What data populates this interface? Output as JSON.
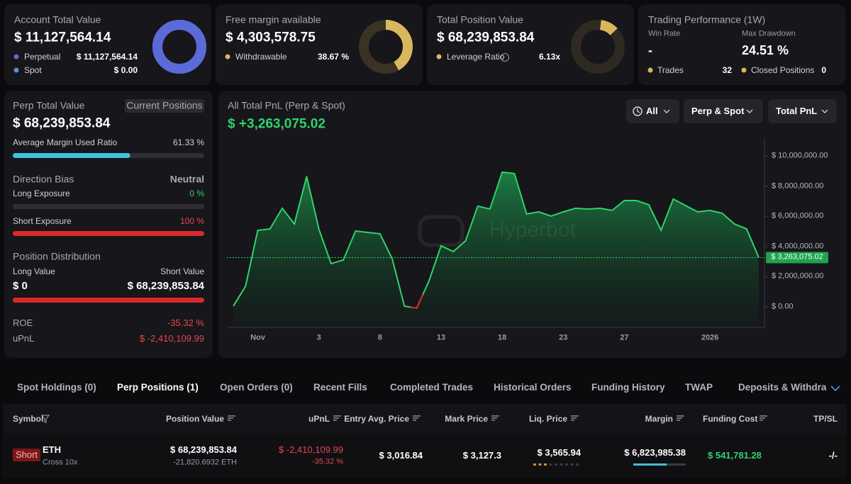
{
  "cards": [
    {
      "title": "Account Total Value",
      "value": "$ 11,127,564.14",
      "items": [
        {
          "label": "Perpetual",
          "value": "$ 11,127,564.14"
        },
        {
          "label": "Spot",
          "value": "$ 0.00"
        }
      ]
    },
    {
      "title": "Free margin available",
      "value": "$ 4,303,578.75",
      "items": [
        {
          "label": "Withdrawable",
          "value": "38.67 %"
        }
      ]
    },
    {
      "title": "Total Position Value",
      "value": "$ 68,239,853.84",
      "items": [
        {
          "label": "Leverage Ratio",
          "value": "6.13x"
        }
      ]
    },
    {
      "title": "Trading Performance (1W)",
      "stats": [
        {
          "label": "Win Rate",
          "value": "-"
        },
        {
          "label": "Max Drawdown",
          "value": "24.51 %"
        }
      ],
      "items": [
        {
          "label": "Trades",
          "value": "32"
        },
        {
          "label": "Closed Positions",
          "value": "0"
        }
      ]
    }
  ],
  "perp": {
    "title": "Perp Total Value",
    "button": "Current Positions",
    "value": "$ 68,239,853.84",
    "margin_label": "Average Margin Used Ratio",
    "margin_value": "61.33 %",
    "bias_label": "Direction Bias",
    "bias_value": "Neutral",
    "long_label": "Long Exposure",
    "long_value": "0 %",
    "short_label": "Short Exposure",
    "short_value": "100 %",
    "dist_label": "Position Distribution",
    "long_value_label": "Long Value",
    "short_value_label": "Short Value",
    "long_amount": "$ 0",
    "short_amount": "$ 68,239,853.84",
    "roe_label": "ROE",
    "roe_value": "-35.32 %",
    "upnl_label": "uPnL",
    "upnl_value": "$ -2,410,109.99"
  },
  "pnl_panel": {
    "value": "$ +3,263,075.02",
    "filters": [
      "All",
      "Perp & Spot",
      "Total PnL"
    ],
    "watermark": "Hyperbot"
  },
  "chart_data": {
    "type": "area",
    "title": "All Total PnL (Perp & Spot)",
    "categories": [
      null,
      null,
      "Nov",
      null,
      null,
      null,
      null,
      "3",
      null,
      null,
      null,
      null,
      "8",
      null,
      null,
      null,
      null,
      "13",
      null,
      null,
      null,
      null,
      "18",
      null,
      null,
      null,
      null,
      "23",
      null,
      null,
      null,
      null,
      "27",
      null,
      null,
      null,
      null,
      null,
      null,
      "2026",
      null,
      null,
      null,
      null
    ],
    "values": [
      50000,
      1360000,
      5070000,
      5160000,
      6530000,
      5490000,
      8640000,
      5160000,
      2860000,
      3100000,
      5020000,
      4930000,
      4840000,
      3190000,
      50000,
      -90000,
      1690000,
      4040000,
      3660000,
      4370000,
      6670000,
      6480000,
      8920000,
      8830000,
      6150000,
      6290000,
      6010000,
      6290000,
      6530000,
      6480000,
      6530000,
      6390000,
      7040000,
      7040000,
      6760000,
      5070000,
      7140000,
      6710000,
      6290000,
      6390000,
      6200000,
      5490000,
      5160000,
      3263075.02
    ],
    "current_value_label": "$ 3,263,075.02",
    "color": "#2fd36b",
    "negative_color": "#e02424",
    "ylim": [
      -1360000,
      11170000
    ],
    "yticks": [
      {
        "value": 0,
        "label": "$ 0.00"
      },
      {
        "value": 2000000,
        "label": "$ 2,000,000.00"
      },
      {
        "value": 4000000,
        "label": "$ 4,000,000.00"
      },
      {
        "value": 6000000,
        "label": "$ 6,000,000.00"
      },
      {
        "value": 8000000,
        "label": "$ 8,000,000.00"
      },
      {
        "value": 10000000,
        "label": "$ 10,000,000.00"
      }
    ],
    "grid": false
  },
  "tabs": [
    "Spot Holdings (0)",
    "Perp Positions (1)",
    "Open Orders (0)",
    "Recent Fills",
    "Completed Trades",
    "Historical Orders",
    "Funding History",
    "TWAP",
    "Deposits & Withdrawals"
  ],
  "table": {
    "columns": [
      "Symbol",
      "Position Value",
      "uPnL",
      "Entry Avg. Price",
      "Mark Price",
      "Liq. Price",
      "Margin",
      "Funding Cost",
      "TP/SL"
    ],
    "rows": [
      {
        "side": "Short",
        "symbol": "ETH",
        "margin_mode": "Cross 10x",
        "position_value": "$ 68,239,853.84",
        "size": "-21,820.6932 ETH",
        "upnl": "$ -2,410,109.99",
        "roe": "-35.32 %",
        "entry": "$ 3,016.84",
        "mark": "$ 3,127.3",
        "liq": "$ 3,565.94",
        "margin": "$ 6,823,985.38",
        "funding": "$ 541,781.28",
        "tpsl": "-/-"
      }
    ]
  }
}
